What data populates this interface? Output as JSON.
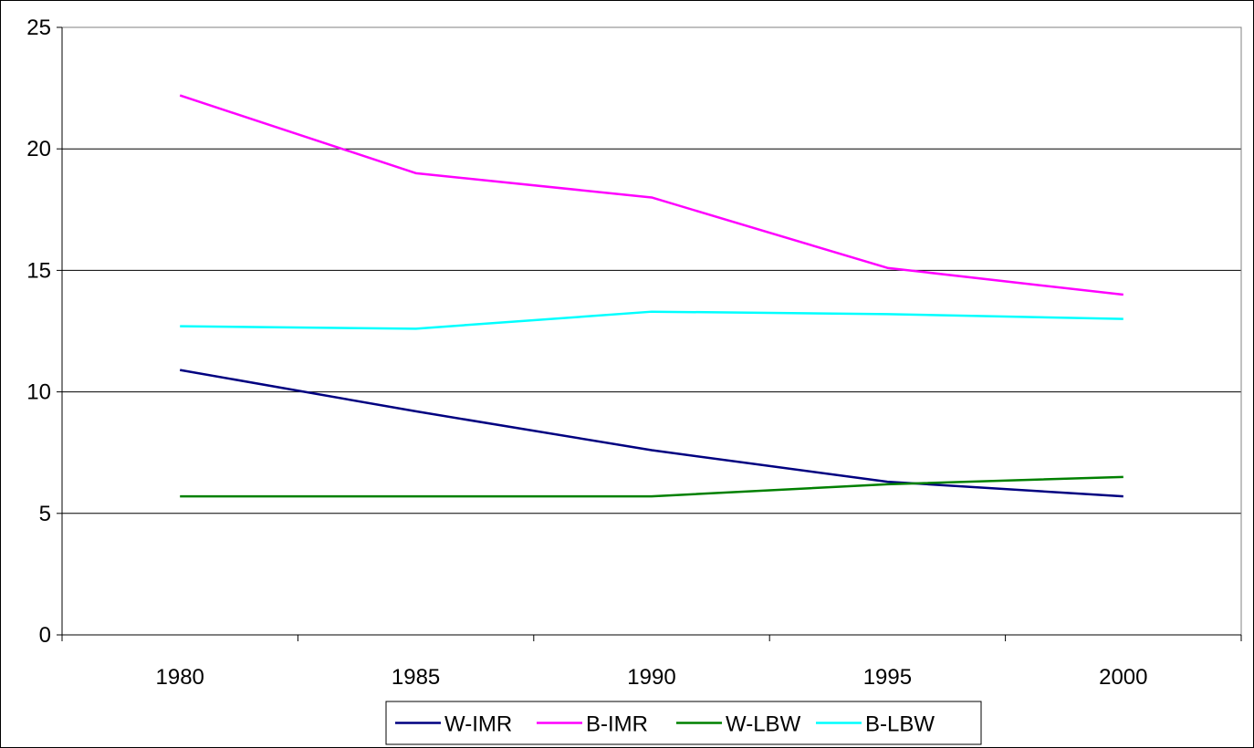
{
  "chart_data": {
    "type": "line",
    "categories": [
      "1980",
      "1985",
      "1990",
      "1995",
      "2000"
    ],
    "x": [
      1980,
      1985,
      1990,
      1995,
      2000
    ],
    "ylim": [
      0,
      25
    ],
    "yticks": [
      0,
      5,
      10,
      15,
      20,
      25
    ],
    "grid": "horizontal",
    "legend": "bottom",
    "series": [
      {
        "name": "W-IMR",
        "color": "#000080",
        "values": [
          10.9,
          9.2,
          7.6,
          6.3,
          5.7
        ]
      },
      {
        "name": "B-IMR",
        "color": "#FF00FF",
        "values": [
          22.2,
          19.0,
          18.0,
          15.1,
          14.0
        ]
      },
      {
        "name": "W-LBW",
        "color": "#008000",
        "values": [
          5.7,
          5.7,
          5.7,
          6.2,
          6.5
        ]
      },
      {
        "name": "B-LBW",
        "color": "#00FFFF",
        "values": [
          12.7,
          12.6,
          13.3,
          13.2,
          13.0
        ]
      }
    ]
  }
}
